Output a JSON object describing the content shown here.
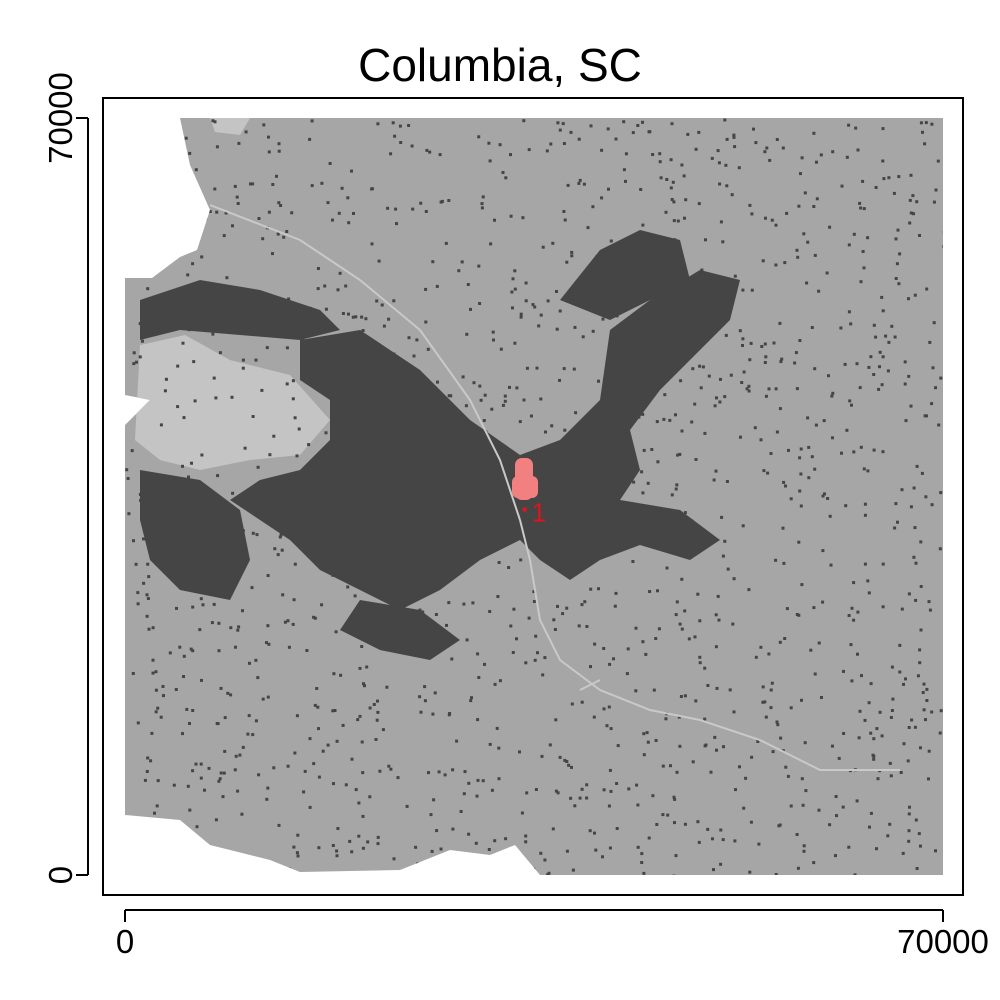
{
  "title": "Columbia, SC",
  "chart_data": {
    "type": "map",
    "title": "Columbia, SC",
    "xlim": [
      0,
      70000
    ],
    "ylim": [
      0,
      70000
    ],
    "x_ticks": [
      {
        "value": 0,
        "label": "0"
      },
      {
        "value": 70000,
        "label": "70000"
      }
    ],
    "y_ticks": [
      {
        "value": 0,
        "label": "0"
      },
      {
        "value": 70000,
        "label": "70000"
      }
    ],
    "markers": [
      {
        "label": "1",
        "x": 34200,
        "y": 33800,
        "color": "#e0141e"
      }
    ],
    "colors": {
      "outside": "#ffffff",
      "rural": "#a6a6a6",
      "water": "#c9c9c9",
      "urban": "#454545",
      "city_center": "#f28080",
      "marker": "#e0141e"
    }
  }
}
